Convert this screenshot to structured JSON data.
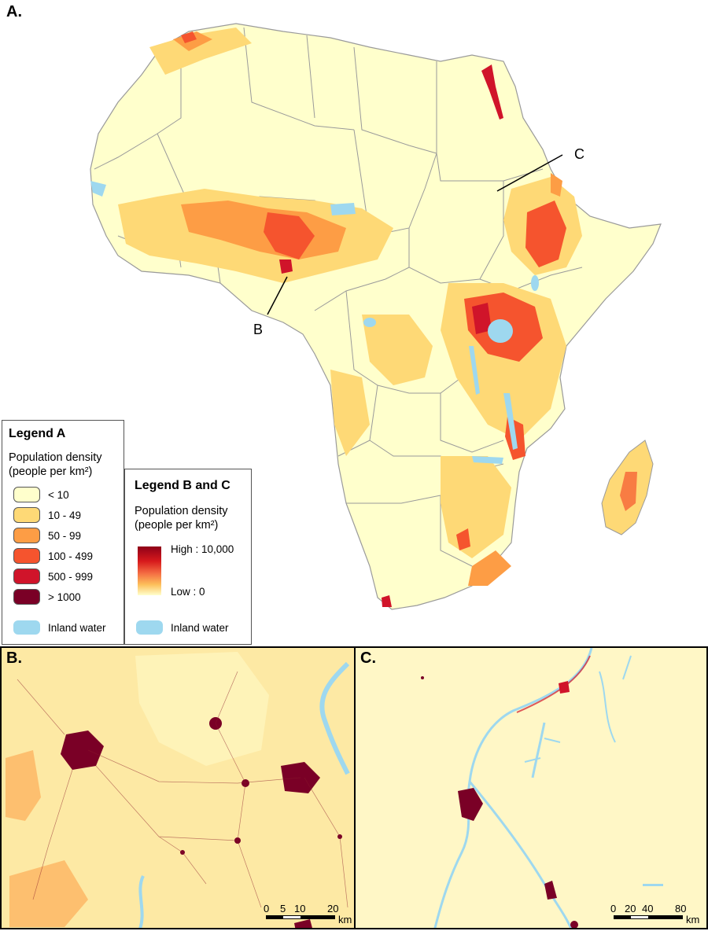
{
  "panels": {
    "a": {
      "label": "A."
    },
    "b": {
      "label": "B."
    },
    "c": {
      "label": "C."
    }
  },
  "callouts": {
    "b": "B",
    "c": "C"
  },
  "legend_a": {
    "title": "Legend A",
    "subtitle_line1": "Population density",
    "subtitle_line2": "(people per km²)",
    "classes": [
      {
        "label": "< 10",
        "color": "#ffffcc"
      },
      {
        "label": "10 - 49",
        "color": "#fed976"
      },
      {
        "label": "50 - 99",
        "color": "#fd9d45"
      },
      {
        "label": "100 - 499",
        "color": "#f5542e"
      },
      {
        "label": "500 - 999",
        "color": "#d0142a"
      },
      {
        "label": "> 1000",
        "color": "#7a0026"
      }
    ],
    "water_label": "Inland water"
  },
  "legend_bc": {
    "title": "Legend B and C",
    "subtitle_line1": "Population density",
    "subtitle_line2": "(people per km²)",
    "high_label": "High : 10,000",
    "low_label": "Low : 0",
    "water_label": "Inland water"
  },
  "scale_b": {
    "ticks": [
      "0",
      "5",
      "10",
      "20"
    ],
    "unit": "km"
  },
  "scale_c": {
    "ticks": [
      "0",
      "20",
      "40",
      "80"
    ],
    "unit": "km"
  },
  "colors": {
    "water": "#9ed8ef",
    "border": "#9a9a9a",
    "base": "#ffffcc"
  }
}
